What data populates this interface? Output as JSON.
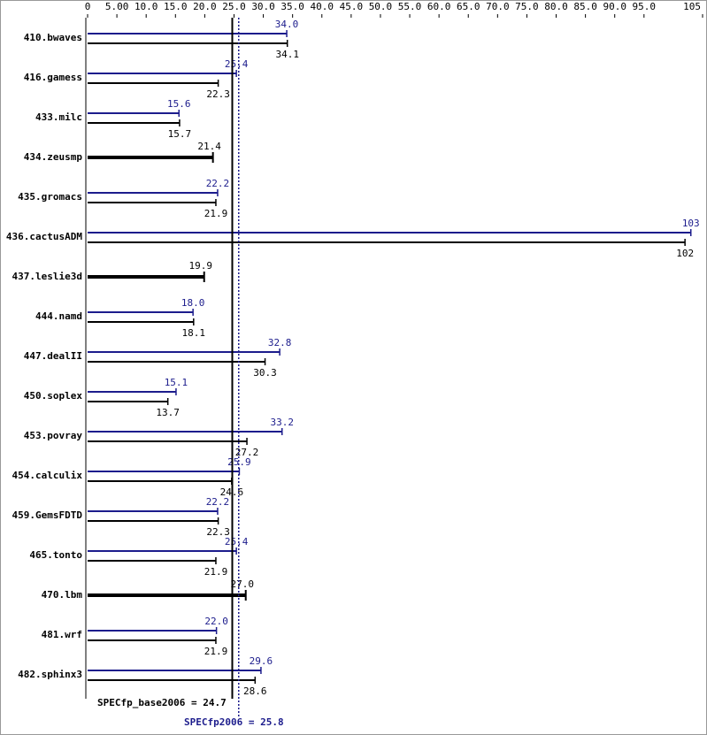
{
  "chart_data": {
    "type": "bar",
    "categories": [
      "410.bwaves",
      "416.gamess",
      "433.milc",
      "434.zeusmp",
      "435.gromacs",
      "436.cactusADM",
      "437.leslie3d",
      "444.namd",
      "447.dealII",
      "450.soplex",
      "453.povray",
      "454.calculix",
      "459.GemsFDTD",
      "465.tonto",
      "470.lbm",
      "481.wrf",
      "482.sphinx3"
    ],
    "series": [
      {
        "color": "#1c1c8c",
        "values": [
          34.0,
          25.4,
          15.6,
          null,
          22.2,
          103,
          null,
          18.0,
          32.8,
          15.1,
          33.2,
          25.9,
          22.2,
          25.4,
          null,
          22.0,
          29.6
        ],
        "value_labels": [
          "34.0",
          "25.4",
          "15.6",
          null,
          "22.2",
          "103",
          null,
          "18.0",
          "32.8",
          "15.1",
          "33.2",
          "25.9",
          "22.2",
          "25.4",
          null,
          "22.0",
          "29.6"
        ]
      },
      {
        "color": "#000000",
        "values": [
          34.1,
          22.3,
          15.7,
          21.4,
          21.9,
          102,
          19.9,
          18.1,
          30.3,
          13.7,
          27.2,
          24.6,
          22.3,
          21.9,
          27.0,
          21.9,
          28.6
        ],
        "value_labels": [
          "34.1",
          "22.3",
          "15.7",
          "21.4",
          "21.9",
          "102",
          "19.9",
          "18.1",
          "30.3",
          "13.7",
          "27.2",
          "24.6",
          "22.3",
          "21.9",
          "27.0",
          "21.9",
          "28.6"
        ]
      }
    ],
    "xlim": [
      0,
      105
    ],
    "xticks": [
      0,
      {
        "value": 5,
        "label": "5.00"
      },
      {
        "value": 10,
        "label": "10.0"
      },
      {
        "value": 15,
        "label": "15.0"
      },
      {
        "value": 20,
        "label": "20.0"
      },
      {
        "value": 25,
        "label": "25.0"
      },
      {
        "value": 30,
        "label": "30.0"
      },
      {
        "value": 35,
        "label": "35.0"
      },
      {
        "value": 40,
        "label": "40.0"
      },
      {
        "value": 45,
        "label": "45.0"
      },
      {
        "value": 50,
        "label": "50.0"
      },
      {
        "value": 55,
        "label": "55.0"
      },
      {
        "value": 60,
        "label": "60.0"
      },
      {
        "value": 65,
        "label": "65.0"
      },
      {
        "value": 70,
        "label": "70.0"
      },
      {
        "value": 75,
        "label": "75.0"
      },
      {
        "value": 80,
        "label": "80.0"
      },
      {
        "value": 85,
        "label": "85.0"
      },
      {
        "value": 90,
        "label": "90.0"
      },
      {
        "value": 95,
        "label": "95.0"
      },
      105
    ],
    "reference_lines": [
      {
        "label": "SPECfp_base2006 = 24.7",
        "value": 24.7,
        "color": "#000000",
        "style": "solid"
      },
      {
        "label": "SPECfp2006 = 25.8",
        "value": 25.8,
        "color": "#1c1c8c",
        "style": "dotted"
      }
    ]
  }
}
